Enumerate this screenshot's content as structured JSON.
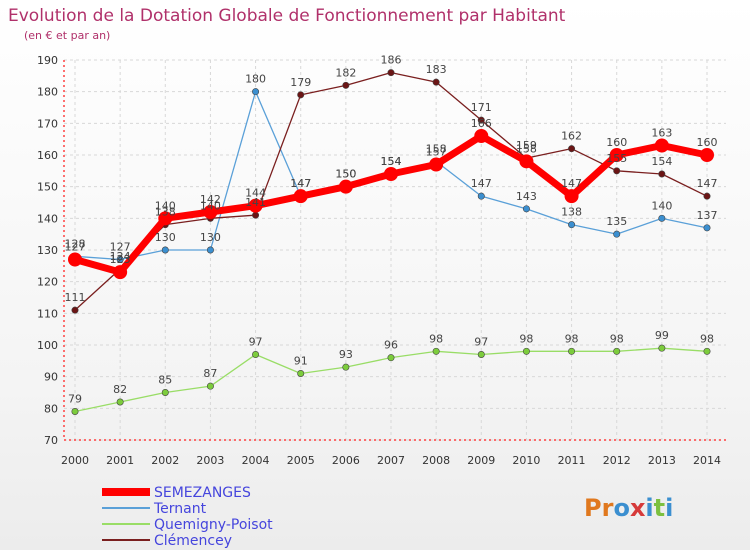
{
  "chart_data": {
    "type": "line",
    "title": "Evolution de la Dotation Globale de Fonctionnement par Habitant",
    "subtitle": "(en € et par an)",
    "x": [
      2000,
      2001,
      2002,
      2003,
      2004,
      2005,
      2006,
      2007,
      2008,
      2009,
      2010,
      2011,
      2012,
      2013,
      2014
    ],
    "ylim": [
      70,
      190
    ],
    "yticks": [
      70,
      80,
      90,
      100,
      110,
      120,
      130,
      140,
      150,
      160,
      170,
      180,
      190
    ],
    "grid": true,
    "legend_position": "bottom-left",
    "series": [
      {
        "name": "SEMEZANGES",
        "color": "#ff0000",
        "values": [
          127,
          123,
          140,
          142,
          144,
          147,
          150,
          154,
          157,
          166,
          158,
          147,
          160,
          163,
          160
        ]
      },
      {
        "name": "Ternant",
        "color": "#5aa0d8",
        "values": [
          128,
          127,
          130,
          130,
          180,
          147,
          150,
          154,
          158,
          147,
          143,
          138,
          135,
          140,
          137
        ]
      },
      {
        "name": "Quemigny-Poisot",
        "color": "#99dd66",
        "values": [
          79,
          82,
          85,
          87,
          97,
          91,
          93,
          96,
          98,
          97,
          98,
          98,
          98,
          99,
          98
        ]
      },
      {
        "name": "Clémencey",
        "color": "#7a1f1f",
        "values": [
          111,
          124,
          138,
          140,
          141,
          179,
          182,
          186,
          183,
          171,
          159,
          162,
          155,
          154,
          147
        ]
      }
    ]
  },
  "branding": {
    "logo_text": "Proxiti"
  }
}
